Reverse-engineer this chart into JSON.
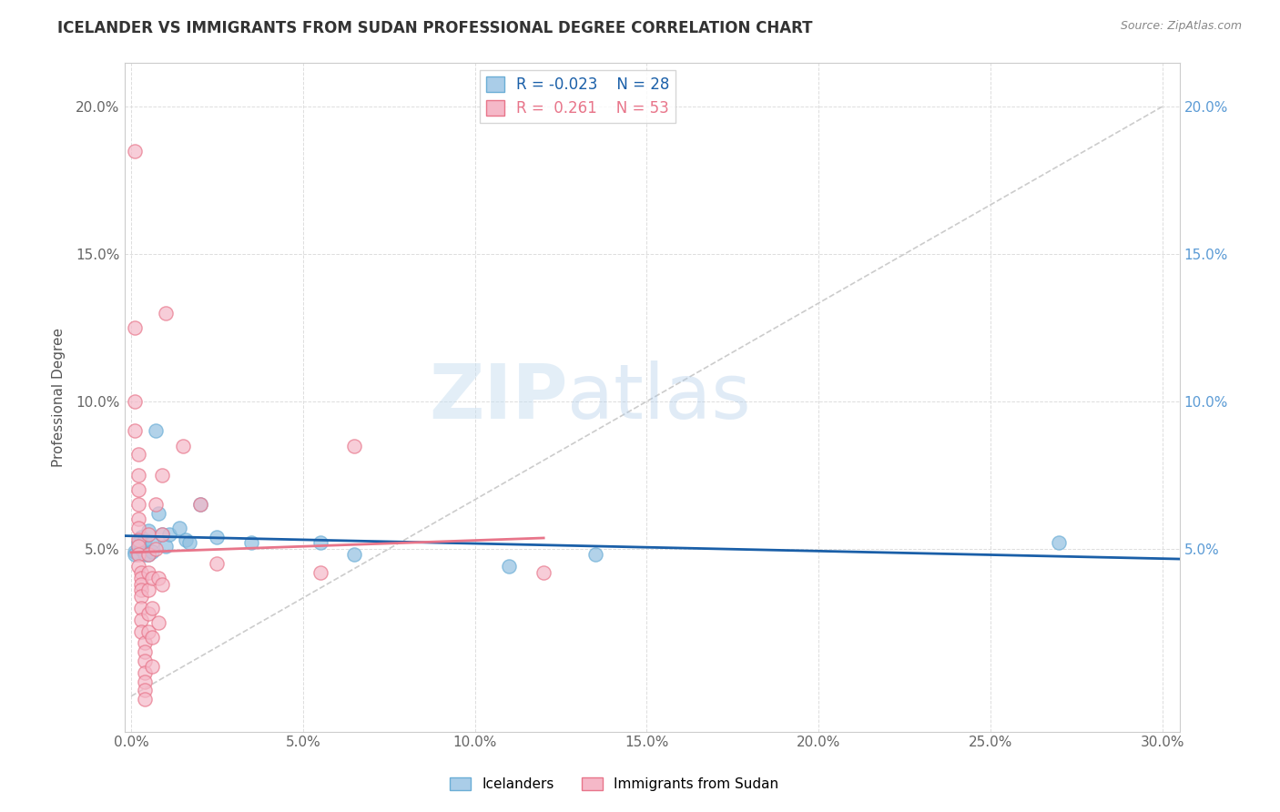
{
  "title": "ICELANDER VS IMMIGRANTS FROM SUDAN PROFESSIONAL DEGREE CORRELATION CHART",
  "source": "Source: ZipAtlas.com",
  "ylabel": "Professional Degree",
  "watermark_zip": "ZIP",
  "watermark_atlas": "atlas",
  "legend_icelander_R": "-0.023",
  "legend_icelander_N": "28",
  "legend_sudan_R": "0.261",
  "legend_sudan_N": "53",
  "xlim": [
    -0.002,
    0.305
  ],
  "ylim": [
    -0.012,
    0.215
  ],
  "xtick_values": [
    0.0,
    0.05,
    0.1,
    0.15,
    0.2,
    0.25,
    0.3
  ],
  "xtick_labels": [
    "0.0%",
    "5.0%",
    "10.0%",
    "15.0%",
    "20.0%",
    "25.0%",
    "30.0%"
  ],
  "ytick_values": [
    0.05,
    0.1,
    0.15,
    0.2
  ],
  "ytick_labels": [
    "5.0%",
    "10.0%",
    "15.0%",
    "20.0%"
  ],
  "icelander_color": "#92c0e0",
  "icelander_edge": "#6baed6",
  "sudan_color": "#f5b8c8",
  "sudan_edge": "#e8758a",
  "icelander_line_color": "#1a5fa8",
  "sudan_line_color": "#e8758a",
  "ref_line_color": "#cccccc",
  "right_tick_color": "#5b9bd5",
  "icelander_scatter": [
    [
      0.001,
      0.049
    ],
    [
      0.001,
      0.048
    ],
    [
      0.002,
      0.052
    ],
    [
      0.002,
      0.051
    ],
    [
      0.003,
      0.054
    ],
    [
      0.003,
      0.05
    ],
    [
      0.004,
      0.053
    ],
    [
      0.004,
      0.048
    ],
    [
      0.005,
      0.056
    ],
    [
      0.005,
      0.048
    ],
    [
      0.006,
      0.052
    ],
    [
      0.006,
      0.049
    ],
    [
      0.007,
      0.09
    ],
    [
      0.008,
      0.062
    ],
    [
      0.009,
      0.055
    ],
    [
      0.01,
      0.051
    ],
    [
      0.011,
      0.055
    ],
    [
      0.014,
      0.057
    ],
    [
      0.016,
      0.053
    ],
    [
      0.017,
      0.052
    ],
    [
      0.02,
      0.065
    ],
    [
      0.025,
      0.054
    ],
    [
      0.035,
      0.052
    ],
    [
      0.055,
      0.052
    ],
    [
      0.065,
      0.048
    ],
    [
      0.11,
      0.044
    ],
    [
      0.135,
      0.048
    ],
    [
      0.27,
      0.052
    ]
  ],
  "sudan_scatter": [
    [
      0.001,
      0.185
    ],
    [
      0.001,
      0.125
    ],
    [
      0.001,
      0.1
    ],
    [
      0.001,
      0.09
    ],
    [
      0.002,
      0.082
    ],
    [
      0.002,
      0.075
    ],
    [
      0.002,
      0.07
    ],
    [
      0.002,
      0.065
    ],
    [
      0.002,
      0.06
    ],
    [
      0.002,
      0.057
    ],
    [
      0.002,
      0.053
    ],
    [
      0.002,
      0.051
    ],
    [
      0.002,
      0.048
    ],
    [
      0.002,
      0.044
    ],
    [
      0.003,
      0.042
    ],
    [
      0.003,
      0.04
    ],
    [
      0.003,
      0.038
    ],
    [
      0.003,
      0.036
    ],
    [
      0.003,
      0.034
    ],
    [
      0.003,
      0.03
    ],
    [
      0.003,
      0.026
    ],
    [
      0.003,
      0.022
    ],
    [
      0.004,
      0.018
    ],
    [
      0.004,
      0.015
    ],
    [
      0.004,
      0.012
    ],
    [
      0.004,
      0.008
    ],
    [
      0.004,
      0.005
    ],
    [
      0.004,
      0.002
    ],
    [
      0.004,
      -0.001
    ],
    [
      0.005,
      0.055
    ],
    [
      0.005,
      0.048
    ],
    [
      0.005,
      0.042
    ],
    [
      0.005,
      0.036
    ],
    [
      0.005,
      0.028
    ],
    [
      0.005,
      0.022
    ],
    [
      0.006,
      0.04
    ],
    [
      0.006,
      0.03
    ],
    [
      0.006,
      0.02
    ],
    [
      0.006,
      0.01
    ],
    [
      0.007,
      0.065
    ],
    [
      0.007,
      0.05
    ],
    [
      0.008,
      0.04
    ],
    [
      0.008,
      0.025
    ],
    [
      0.009,
      0.075
    ],
    [
      0.009,
      0.055
    ],
    [
      0.009,
      0.038
    ],
    [
      0.01,
      0.13
    ],
    [
      0.015,
      0.085
    ],
    [
      0.02,
      0.065
    ],
    [
      0.025,
      0.045
    ],
    [
      0.055,
      0.042
    ],
    [
      0.065,
      0.085
    ],
    [
      0.12,
      0.042
    ]
  ]
}
